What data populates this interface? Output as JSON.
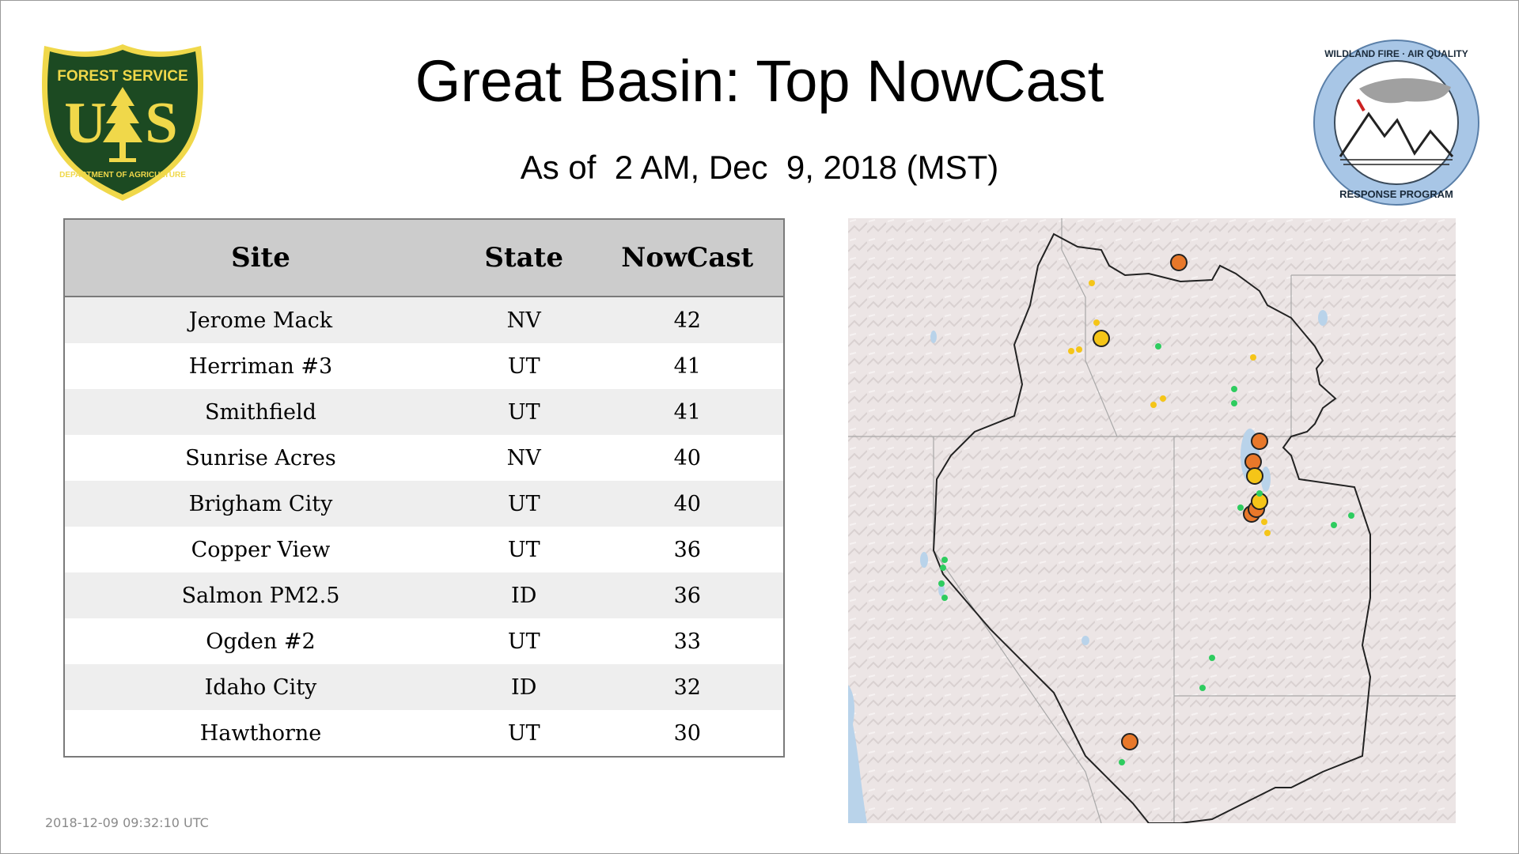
{
  "header": {
    "title": "Great Basin: Top NowCast",
    "subtitle": "As of  2 AM, Dec  9, 2018 (MST)"
  },
  "logos": {
    "forest_service": {
      "top_text": "FOREST SERVICE",
      "letters": "US",
      "bottom_text": "DEPARTMENT OF AGRICULTURE",
      "icon": "pine-tree-shield-icon",
      "green": "#1c4a22",
      "gold": "#f0d84a"
    },
    "wildland_fire": {
      "top_text": "WILDLAND FIRE · AIR QUALITY",
      "bottom_text": "RESPONSE PROGRAM",
      "icon": "mountain-smoke-icon",
      "ring_color": "#a8c6e6"
    }
  },
  "table": {
    "headers": {
      "site": "Site",
      "state": "State",
      "nowcast": "NowCast"
    },
    "rows": [
      {
        "site": "Jerome Mack",
        "state": "NV",
        "nowcast": "42"
      },
      {
        "site": "Herriman #3",
        "state": "UT",
        "nowcast": "41"
      },
      {
        "site": "Smithfield",
        "state": "UT",
        "nowcast": "41"
      },
      {
        "site": "Sunrise Acres",
        "state": "NV",
        "nowcast": "40"
      },
      {
        "site": "Brigham City",
        "state": "UT",
        "nowcast": "40"
      },
      {
        "site": "Copper View",
        "state": "UT",
        "nowcast": "36"
      },
      {
        "site": "Salmon PM2.5",
        "state": "ID",
        "nowcast": "36"
      },
      {
        "site": "Ogden #2",
        "state": "UT",
        "nowcast": "33"
      },
      {
        "site": "Idaho City",
        "state": "ID",
        "nowcast": "32"
      },
      {
        "site": "Hawthorne",
        "state": "UT",
        "nowcast": "30"
      }
    ]
  },
  "map": {
    "region": "Great Basin",
    "marker_colors": {
      "good": "#2ecc5f",
      "moderate": "#f5c518",
      "unhealthy_sensitive": "#e8782a"
    }
  },
  "footer": {
    "timestamp": "2018-12-09 09:32:10 UTC"
  }
}
